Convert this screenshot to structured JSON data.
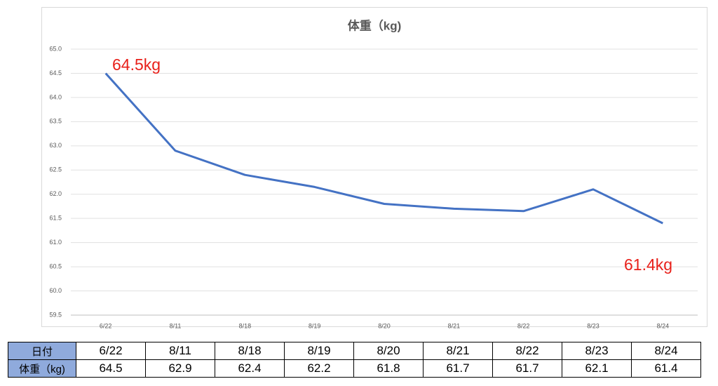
{
  "chart_data": {
    "type": "line",
    "title": "体重（kg)",
    "categories": [
      "6/22",
      "8/11",
      "8/18",
      "8/19",
      "8/20",
      "8/21",
      "8/22",
      "8/23",
      "8/24"
    ],
    "series": [
      {
        "color": "#4472c4",
        "values": [
          64.5,
          62.9,
          62.4,
          62.15,
          61.8,
          61.7,
          61.65,
          62.1,
          61.4
        ]
      }
    ],
    "ylim": [
      59.5,
      65.0
    ],
    "yticks": [
      {
        "value": 59.5,
        "label": "59.5"
      },
      {
        "value": 60,
        "label": "60.0"
      },
      {
        "value": 60.5,
        "label": "60.5"
      },
      {
        "value": 61,
        "label": "61.0"
      },
      {
        "value": 61.5,
        "label": "61.5"
      },
      {
        "value": 62,
        "label": "62.0"
      },
      {
        "value": 62.5,
        "label": "62.5"
      },
      {
        "value": 63,
        "label": "63.0"
      },
      {
        "value": 63.5,
        "label": "63.5"
      },
      {
        "value": 64,
        "label": "64.0"
      },
      {
        "value": 64.5,
        "label": "64.5"
      },
      {
        "value": 65,
        "label": "65.0"
      }
    ],
    "grid": true,
    "annotations": [
      {
        "text": "64.5kg",
        "color": "#e8201a"
      },
      {
        "text": "61.4kg",
        "color": "#e8201a"
      }
    ]
  },
  "table": {
    "rows": [
      [
        "日付",
        "6/22",
        "8/11",
        "8/18",
        "8/19",
        "8/20",
        "8/21",
        "8/22",
        "8/23",
        "8/24"
      ],
      [
        "体重（kg)",
        64.5,
        62.9,
        62.4,
        62.2,
        61.8,
        61.7,
        61.7,
        62.1,
        61.4
      ]
    ]
  }
}
